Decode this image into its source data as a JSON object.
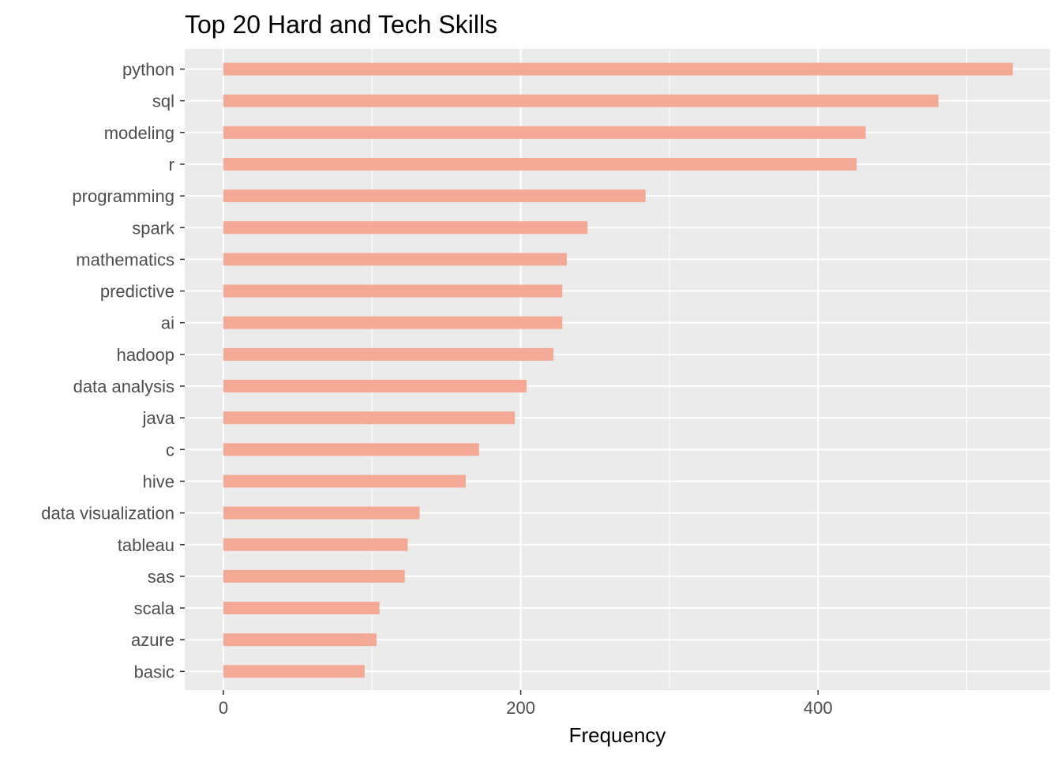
{
  "chart_data": {
    "type": "bar",
    "orientation": "horizontal",
    "title": "Top 20 Hard and Tech Skills",
    "xlabel": "Frequency",
    "ylabel": "",
    "xlim": [
      -26,
      556
    ],
    "xticks": [
      0,
      200,
      400
    ],
    "categories": [
      "python",
      "sql",
      "modeling",
      "r",
      "programming",
      "spark",
      "mathematics",
      "predictive",
      "ai",
      "hadoop",
      "data analysis",
      "java",
      "c",
      "hive",
      "data visualization",
      "tableau",
      "sas",
      "scala",
      "azure",
      "basic"
    ],
    "values": [
      531,
      481,
      432,
      426,
      284,
      245,
      231,
      228,
      228,
      222,
      204,
      196,
      172,
      163,
      132,
      124,
      122,
      105,
      103,
      95
    ],
    "bar_color": "#f4a996",
    "panel_background": "#ebebeb",
    "grid": true,
    "legend": "none"
  }
}
